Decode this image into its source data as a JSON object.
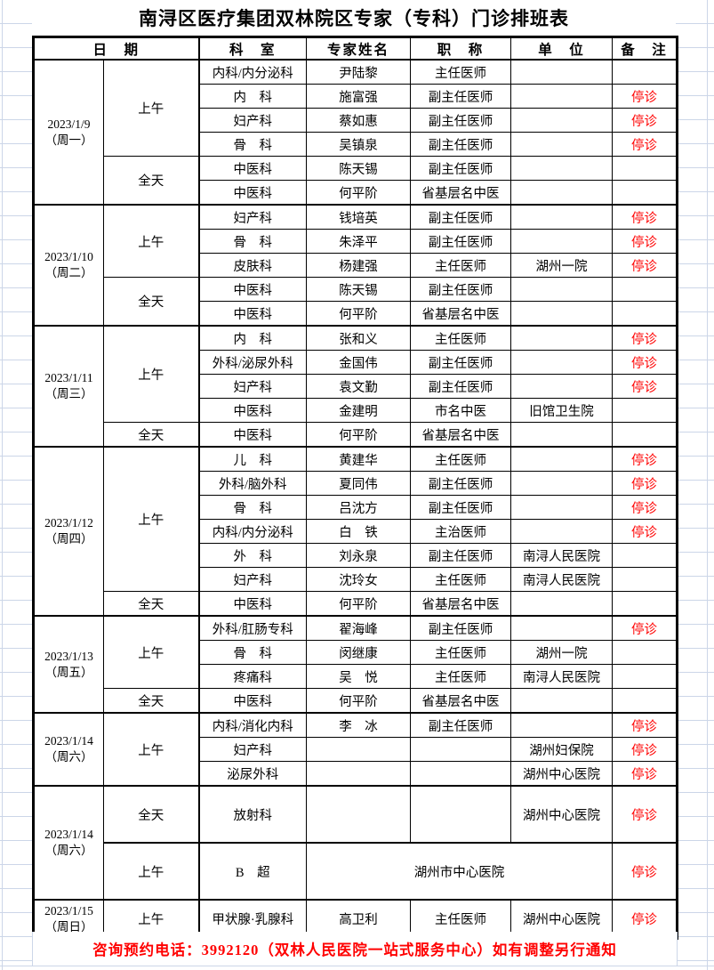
{
  "title": "南浔区医疗集团双林院区专家（专科）门诊排班表",
  "columns": [
    "日　期",
    "科　室",
    "专家姓名",
    "职　称",
    "单　位",
    "备　注"
  ],
  "colors": {
    "alert_red": "#ff0000"
  },
  "footer": "咨询预约电话：3992120（双林人民医院一站式服务中心）如有调整另行通知",
  "schedule": [
    {
      "date": "2023/1/9",
      "weekday": "（周一）",
      "sessions": [
        {
          "time": "上午",
          "rows": [
            {
              "dept": "内科/内分泌科",
              "name": "尹陆黎",
              "title": "主任医师",
              "unit": "",
              "note": ""
            },
            {
              "dept": "内　科",
              "name": "施富强",
              "title": "副主任医师",
              "unit": "",
              "note": "停诊"
            },
            {
              "dept": "妇产科",
              "name": "蔡如惠",
              "title": "副主任医师",
              "unit": "",
              "note": "停诊"
            },
            {
              "dept": "骨　科",
              "name": "吴镇泉",
              "title": "副主任医师",
              "unit": "",
              "note": "停诊"
            }
          ]
        },
        {
          "time": "全天",
          "rows": [
            {
              "dept": "中医科",
              "name": "陈天锡",
              "title": "副主任医师",
              "unit": "",
              "note": ""
            },
            {
              "dept": "中医科",
              "name": "何平阶",
              "title": "省基层名中医",
              "unit": "",
              "note": ""
            }
          ]
        }
      ]
    },
    {
      "date": "2023/1/10",
      "weekday": "（周二）",
      "sessions": [
        {
          "time": "上午",
          "rows": [
            {
              "dept": "妇产科",
              "name": "钱培英",
              "title": "副主任医师",
              "unit": "",
              "note": "停诊"
            },
            {
              "dept": "骨　科",
              "name": "朱泽平",
              "title": "副主任医师",
              "unit": "",
              "note": "停诊"
            },
            {
              "dept": "皮肤科",
              "name": "杨建强",
              "title": "主任医师",
              "unit": "湖州一院",
              "note": "停诊"
            }
          ]
        },
        {
          "time": "全天",
          "rows": [
            {
              "dept": "中医科",
              "name": "陈天锡",
              "title": "副主任医师",
              "unit": "",
              "note": ""
            },
            {
              "dept": "中医科",
              "name": "何平阶",
              "title": "省基层名中医",
              "unit": "",
              "note": ""
            }
          ]
        }
      ]
    },
    {
      "date": "2023/1/11",
      "weekday": "（周三）",
      "sessions": [
        {
          "time": "上午",
          "rows": [
            {
              "dept": "内　科",
              "name": "张和义",
              "title": "主任医师",
              "unit": "",
              "note": "停诊"
            },
            {
              "dept": "外科/泌尿外科",
              "name": "金国伟",
              "title": "副主任医师",
              "unit": "",
              "note": "停诊"
            },
            {
              "dept": "妇产科",
              "name": "袁文勤",
              "title": "副主任医师",
              "unit": "",
              "note": "停诊"
            },
            {
              "dept": "中医科",
              "name": "金建明",
              "title": "市名中医",
              "unit": "旧馆卫生院",
              "note": ""
            }
          ]
        },
        {
          "time": "全天",
          "rows": [
            {
              "dept": "中医科",
              "name": "何平阶",
              "title": "省基层名中医",
              "unit": "",
              "note": ""
            }
          ]
        }
      ]
    },
    {
      "date": "2023/1/12",
      "weekday": "（周四）",
      "sessions": [
        {
          "time": "上午",
          "rows": [
            {
              "dept": "儿　科",
              "name": "黄建华",
              "title": "主任医师",
              "unit": "",
              "note": "停诊"
            },
            {
              "dept": "外科/脑外科",
              "name": "夏同伟",
              "title": "副主任医师",
              "unit": "",
              "note": "停诊"
            },
            {
              "dept": "骨　科",
              "name": "吕沈方",
              "title": "副主任医师",
              "unit": "",
              "note": "停诊"
            },
            {
              "dept": "内科/内分泌科",
              "name": "白　铁",
              "title": "主治医师",
              "unit": "",
              "note": "停诊"
            },
            {
              "dept": "外　科",
              "name": "刘永泉",
              "title": "副主任医师",
              "unit": "南浔人民医院",
              "note": ""
            },
            {
              "dept": "妇产科",
              "name": "沈玲女",
              "title": "主任医师",
              "unit": "南浔人民医院",
              "note": ""
            }
          ]
        },
        {
          "time": "全天",
          "rows": [
            {
              "dept": "中医科",
              "name": "何平阶",
              "title": "省基层名中医",
              "unit": "",
              "note": ""
            }
          ]
        }
      ]
    },
    {
      "date": "2023/1/13",
      "weekday": "（周五）",
      "sessions": [
        {
          "time": "上午",
          "rows": [
            {
              "dept": "外科/肛肠专科",
              "name": "翟海峰",
              "title": "副主任医师",
              "unit": "",
              "note": "停诊"
            },
            {
              "dept": "骨　科",
              "name": "闵继康",
              "title": "主任医师",
              "unit": "湖州一院",
              "note": ""
            },
            {
              "dept": "疼痛科",
              "name": "吴　悦",
              "title": "主任医师",
              "unit": "南浔人民医院",
              "note": ""
            }
          ]
        },
        {
          "time": "全天",
          "rows": [
            {
              "dept": "中医科",
              "name": "何平阶",
              "title": "省基层名中医",
              "unit": "",
              "note": ""
            }
          ]
        }
      ]
    },
    {
      "date": "2023/1/14",
      "weekday": "（周六）",
      "sessions": [
        {
          "time": "上午",
          "rows": [
            {
              "dept": "内科/消化内科",
              "name": "李　冰",
              "title": "副主任医师",
              "unit": "",
              "note": "停诊"
            },
            {
              "dept": "妇产科",
              "name": "",
              "title": "",
              "unit": "湖州妇保院",
              "note": "停诊"
            },
            {
              "dept": "泌尿外科",
              "name": "",
              "title": "",
              "unit": "湖州中心医院",
              "note": "停诊"
            }
          ]
        }
      ]
    },
    {
      "date": "2023/1/14",
      "weekday": "（周六）",
      "sessions": [
        {
          "time": "全天",
          "rows": [
            {
              "dept": "放射科",
              "name": "",
              "title": "",
              "unit": "湖州中心医院",
              "note": "停诊"
            }
          ]
        },
        {
          "time": "上午",
          "rows": [
            {
              "dept": "B　超",
              "merged": "湖州市中心医院",
              "note": "停诊"
            }
          ]
        }
      ]
    },
    {
      "date": "2023/1/15",
      "weekday": "（周日）",
      "sessions": [
        {
          "time": "上午",
          "rows": [
            {
              "dept": "甲状腺·乳腺科",
              "name": "高卫利",
              "title": "主任医师",
              "unit": "湖州中心医院",
              "note": "停诊"
            }
          ]
        }
      ]
    }
  ]
}
